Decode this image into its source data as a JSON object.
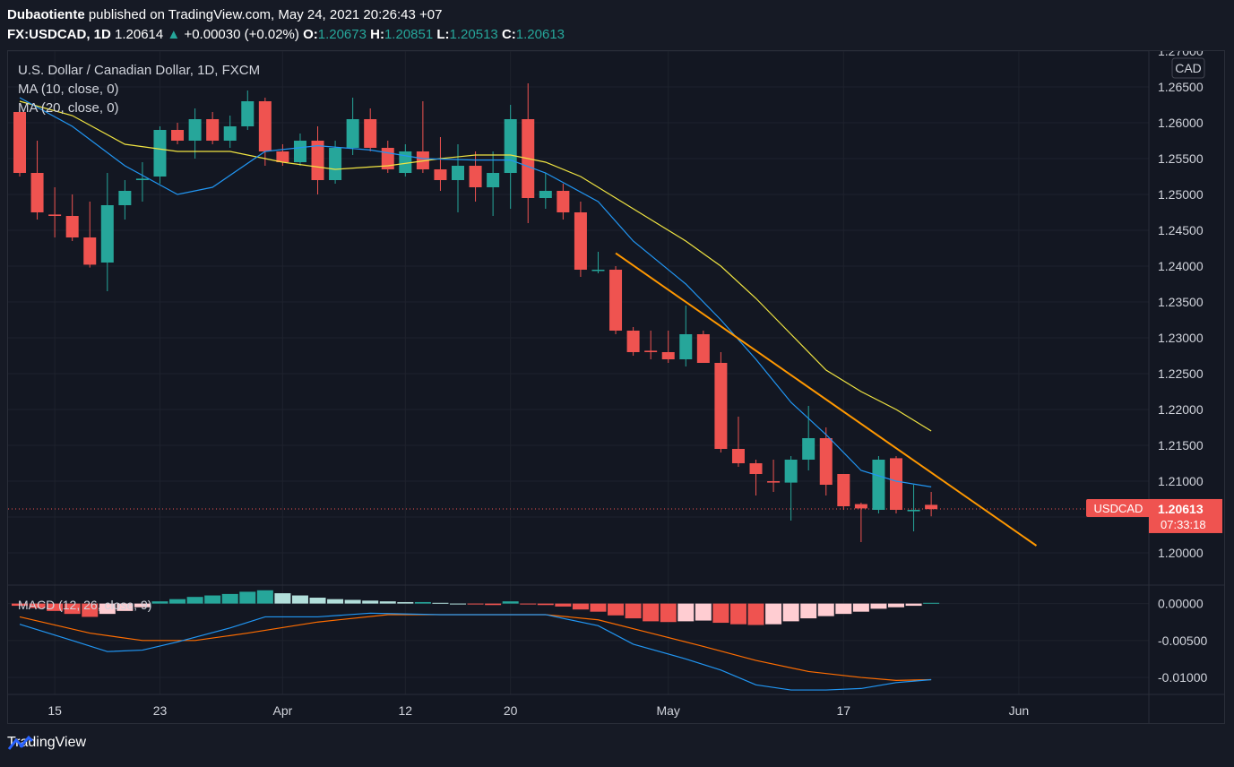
{
  "header": {
    "author": "Dubaotiente",
    "published_text": "published on TradingView.com, May 24, 2021 20:26:43 +07",
    "symbol": "FX:USDCAD, 1D",
    "last": "1.20614",
    "change_arrow": "▲",
    "change": "+0.00030 (+0.02%)",
    "o_label": "O:",
    "o_value": "1.20673",
    "h_label": "H:",
    "h_value": "1.20851",
    "l_label": "L:",
    "l_value": "1.20513",
    "c_label": "C:",
    "c_value": "1.20613"
  },
  "legend": {
    "title": "U.S. Dollar / Canadian Dollar, 1D, FXCM",
    "ma10": "MA (10, close, 0)",
    "ma20": "MA (20, close, 0)",
    "macd": "MACD (12, 26, close, 9)"
  },
  "price_tag": {
    "symbol": "USDCAD",
    "price": "1.20613",
    "countdown": "07:33:18"
  },
  "currency_label": "CAD",
  "footer": {
    "brand": "TradingView"
  },
  "colors": {
    "up": "#26a69a",
    "down": "#ef5350",
    "ma10": "#2196f3",
    "ma20": "#f0e442",
    "trend": "#ff9800",
    "macd_line": "#2196f3",
    "signal_line": "#ff6d00"
  },
  "chart_data": {
    "type": "candlestick",
    "price_ylim": [
      1.1955,
      1.27
    ],
    "price_ticks": [
      "1.20000",
      "1.20500",
      "1.21000",
      "1.21500",
      "1.22000",
      "1.22500",
      "1.23000",
      "1.23500",
      "1.24000",
      "1.24500",
      "1.25000",
      "1.25500",
      "1.26000",
      "1.26500",
      "1.27000"
    ],
    "x_labels": [
      {
        "label": "15",
        "index": 2
      },
      {
        "label": "23",
        "index": 8
      },
      {
        "label": "Apr",
        "index": 15
      },
      {
        "label": "12",
        "index": 22
      },
      {
        "label": "20",
        "index": 28
      },
      {
        "label": "May",
        "index": 37
      },
      {
        "label": "17",
        "index": 47
      },
      {
        "label": "Jun",
        "index": 57
      }
    ],
    "candles": [
      {
        "o": 1.2615,
        "h": 1.2625,
        "l": 1.2525,
        "c": 1.253
      },
      {
        "o": 1.253,
        "h": 1.2575,
        "l": 1.2465,
        "c": 1.2475
      },
      {
        "o": 1.2472,
        "h": 1.251,
        "l": 1.244,
        "c": 1.247
      },
      {
        "o": 1.247,
        "h": 1.25,
        "l": 1.2435,
        "c": 1.244
      },
      {
        "o": 1.244,
        "h": 1.249,
        "l": 1.2398,
        "c": 1.2402
      },
      {
        "o": 1.2405,
        "h": 1.253,
        "l": 1.2365,
        "c": 1.2485
      },
      {
        "o": 1.2485,
        "h": 1.252,
        "l": 1.2465,
        "c": 1.2505
      },
      {
        "o": 1.252,
        "h": 1.2545,
        "l": 1.249,
        "c": 1.2522
      },
      {
        "o": 1.2525,
        "h": 1.2595,
        "l": 1.2515,
        "c": 1.259
      },
      {
        "o": 1.259,
        "h": 1.26,
        "l": 1.257,
        "c": 1.2575
      },
      {
        "o": 1.2575,
        "h": 1.262,
        "l": 1.255,
        "c": 1.2605
      },
      {
        "o": 1.2605,
        "h": 1.2615,
        "l": 1.257,
        "c": 1.2575
      },
      {
        "o": 1.2575,
        "h": 1.261,
        "l": 1.2565,
        "c": 1.2595
      },
      {
        "o": 1.2595,
        "h": 1.2645,
        "l": 1.259,
        "c": 1.263
      },
      {
        "o": 1.263,
        "h": 1.2635,
        "l": 1.254,
        "c": 1.256
      },
      {
        "o": 1.256,
        "h": 1.257,
        "l": 1.254,
        "c": 1.2545
      },
      {
        "o": 1.2545,
        "h": 1.2585,
        "l": 1.254,
        "c": 1.2575
      },
      {
        "o": 1.2575,
        "h": 1.2595,
        "l": 1.25,
        "c": 1.252
      },
      {
        "o": 1.252,
        "h": 1.2575,
        "l": 1.2515,
        "c": 1.2565
      },
      {
        "o": 1.2565,
        "h": 1.2635,
        "l": 1.2555,
        "c": 1.2605
      },
      {
        "o": 1.2605,
        "h": 1.262,
        "l": 1.256,
        "c": 1.2565
      },
      {
        "o": 1.2565,
        "h": 1.2575,
        "l": 1.253,
        "c": 1.2535
      },
      {
        "o": 1.253,
        "h": 1.257,
        "l": 1.2525,
        "c": 1.256
      },
      {
        "o": 1.256,
        "h": 1.263,
        "l": 1.253,
        "c": 1.2535
      },
      {
        "o": 1.2535,
        "h": 1.258,
        "l": 1.2505,
        "c": 1.252
      },
      {
        "o": 1.252,
        "h": 1.257,
        "l": 1.2475,
        "c": 1.254
      },
      {
        "o": 1.254,
        "h": 1.256,
        "l": 1.249,
        "c": 1.251
      },
      {
        "o": 1.251,
        "h": 1.256,
        "l": 1.247,
        "c": 1.253
      },
      {
        "o": 1.253,
        "h": 1.2625,
        "l": 1.248,
        "c": 1.2605
      },
      {
        "o": 1.2605,
        "h": 1.2655,
        "l": 1.246,
        "c": 1.2495
      },
      {
        "o": 1.2495,
        "h": 1.253,
        "l": 1.248,
        "c": 1.2505
      },
      {
        "o": 1.2505,
        "h": 1.2515,
        "l": 1.2465,
        "c": 1.2475
      },
      {
        "o": 1.2475,
        "h": 1.249,
        "l": 1.2385,
        "c": 1.2395
      },
      {
        "o": 1.2395,
        "h": 1.242,
        "l": 1.239,
        "c": 1.2395
      },
      {
        "o": 1.2395,
        "h": 1.24,
        "l": 1.2305,
        "c": 1.231
      },
      {
        "o": 1.231,
        "h": 1.2315,
        "l": 1.2275,
        "c": 1.228
      },
      {
        "o": 1.2282,
        "h": 1.231,
        "l": 1.227,
        "c": 1.228
      },
      {
        "o": 1.228,
        "h": 1.231,
        "l": 1.2265,
        "c": 1.227
      },
      {
        "o": 1.227,
        "h": 1.2345,
        "l": 1.226,
        "c": 1.2305
      },
      {
        "o": 1.2305,
        "h": 1.231,
        "l": 1.2265,
        "c": 1.2265
      },
      {
        "o": 1.2265,
        "h": 1.228,
        "l": 1.214,
        "c": 1.2145
      },
      {
        "o": 1.2145,
        "h": 1.219,
        "l": 1.212,
        "c": 1.2125
      },
      {
        "o": 1.2125,
        "h": 1.213,
        "l": 1.208,
        "c": 1.211
      },
      {
        "o": 1.21,
        "h": 1.213,
        "l": 1.2085,
        "c": 1.2098
      },
      {
        "o": 1.2098,
        "h": 1.2135,
        "l": 1.2045,
        "c": 1.213
      },
      {
        "o": 1.213,
        "h": 1.2205,
        "l": 1.2115,
        "c": 1.216
      },
      {
        "o": 1.216,
        "h": 1.2175,
        "l": 1.208,
        "c": 1.2095
      },
      {
        "o": 1.211,
        "h": 1.211,
        "l": 1.206,
        "c": 1.2065
      },
      {
        "o": 1.2068,
        "h": 1.207,
        "l": 1.2015,
        "c": 1.2062
      },
      {
        "o": 1.206,
        "h": 1.2135,
        "l": 1.2055,
        "c": 1.213
      },
      {
        "o": 1.2132,
        "h": 1.2135,
        "l": 1.2055,
        "c": 1.206
      },
      {
        "o": 1.2058,
        "h": 1.2095,
        "l": 1.203,
        "c": 1.206
      },
      {
        "o": 1.2067,
        "h": 1.2085,
        "l": 1.2051,
        "c": 1.2061
      }
    ],
    "ma10": [
      [
        0,
        1.2635
      ],
      [
        3,
        1.2595
      ],
      [
        6,
        1.254
      ],
      [
        9,
        1.25
      ],
      [
        11,
        1.251
      ],
      [
        14,
        1.256
      ],
      [
        17,
        1.2568
      ],
      [
        20,
        1.2562
      ],
      [
        23,
        1.255
      ],
      [
        26,
        1.2548
      ],
      [
        28,
        1.2548
      ],
      [
        30,
        1.253
      ],
      [
        33,
        1.249
      ],
      [
        35,
        1.2435
      ],
      [
        38,
        1.2375
      ],
      [
        40,
        1.2325
      ],
      [
        42,
        1.227
      ],
      [
        44,
        1.221
      ],
      [
        46,
        1.2165
      ],
      [
        48,
        1.2115
      ],
      [
        50,
        1.21
      ],
      [
        52,
        1.2092
      ]
    ],
    "ma20": [
      [
        0,
        1.263
      ],
      [
        3,
        1.261
      ],
      [
        6,
        1.257
      ],
      [
        9,
        1.256
      ],
      [
        12,
        1.256
      ],
      [
        15,
        1.2545
      ],
      [
        18,
        1.2535
      ],
      [
        21,
        1.254
      ],
      [
        24,
        1.255
      ],
      [
        26,
        1.2555
      ],
      [
        28,
        1.2555
      ],
      [
        30,
        1.2545
      ],
      [
        32,
        1.2525
      ],
      [
        34,
        1.2495
      ],
      [
        36,
        1.2465
      ],
      [
        38,
        1.2435
      ],
      [
        40,
        1.24
      ],
      [
        42,
        1.2355
      ],
      [
        44,
        1.2305
      ],
      [
        46,
        1.2255
      ],
      [
        48,
        1.2225
      ],
      [
        50,
        1.22
      ],
      [
        52,
        1.217
      ]
    ],
    "trendline": [
      [
        34,
        1.2418
      ],
      [
        58,
        1.201
      ]
    ],
    "current_price": 1.20613,
    "macd_ylim": [
      -0.0123,
      0.0025
    ],
    "macd_ticks": [
      "0.00000",
      "-0.00500",
      "-0.01000"
    ],
    "macd_hist": [
      -0.0003,
      -0.0006,
      -0.001,
      -0.0014,
      -0.0018,
      -0.0014,
      -0.001,
      -0.0005,
      0.0003,
      0.0006,
      0.0009,
      0.0011,
      0.0013,
      0.0016,
      0.0018,
      0.0014,
      0.0011,
      0.0008,
      0.0006,
      0.0005,
      0.0004,
      0.0003,
      0.0002,
      0.0002,
      0.0001,
      0.0,
      -0.0001,
      -0.0002,
      0.0003,
      -0.0001,
      -0.0002,
      -0.0004,
      -0.0008,
      -0.0011,
      -0.0016,
      -0.002,
      -0.0024,
      -0.0025,
      -0.0024,
      -0.0023,
      -0.0026,
      -0.0028,
      -0.0029,
      -0.0028,
      -0.0024,
      -0.002,
      -0.0017,
      -0.0014,
      -0.0011,
      -0.0007,
      -0.0005,
      -0.0003,
      0.0001
    ],
    "macd_line": [
      [
        0,
        -0.0028
      ],
      [
        3,
        -0.005
      ],
      [
        5,
        -0.0065
      ],
      [
        7,
        -0.0063
      ],
      [
        9,
        -0.0052
      ],
      [
        12,
        -0.0033
      ],
      [
        14,
        -0.0018
      ],
      [
        17,
        -0.0018
      ],
      [
        20,
        -0.0013
      ],
      [
        24,
        -0.0015
      ],
      [
        28,
        -0.0015
      ],
      [
        30,
        -0.0015
      ],
      [
        33,
        -0.003
      ],
      [
        35,
        -0.0055
      ],
      [
        38,
        -0.0075
      ],
      [
        40,
        -0.009
      ],
      [
        42,
        -0.011
      ],
      [
        44,
        -0.0117
      ],
      [
        46,
        -0.0117
      ],
      [
        48,
        -0.0115
      ],
      [
        50,
        -0.0107
      ],
      [
        52,
        -0.0103
      ]
    ],
    "signal_line": [
      [
        0,
        -0.0018
      ],
      [
        4,
        -0.004
      ],
      [
        7,
        -0.005
      ],
      [
        10,
        -0.005
      ],
      [
        13,
        -0.004
      ],
      [
        17,
        -0.0025
      ],
      [
        21,
        -0.0015
      ],
      [
        27,
        -0.0015
      ],
      [
        30,
        -0.0015
      ],
      [
        33,
        -0.0022
      ],
      [
        36,
        -0.004
      ],
      [
        39,
        -0.0058
      ],
      [
        42,
        -0.0077
      ],
      [
        45,
        -0.0092
      ],
      [
        48,
        -0.01
      ],
      [
        50,
        -0.0104
      ],
      [
        52,
        -0.0103
      ]
    ]
  }
}
